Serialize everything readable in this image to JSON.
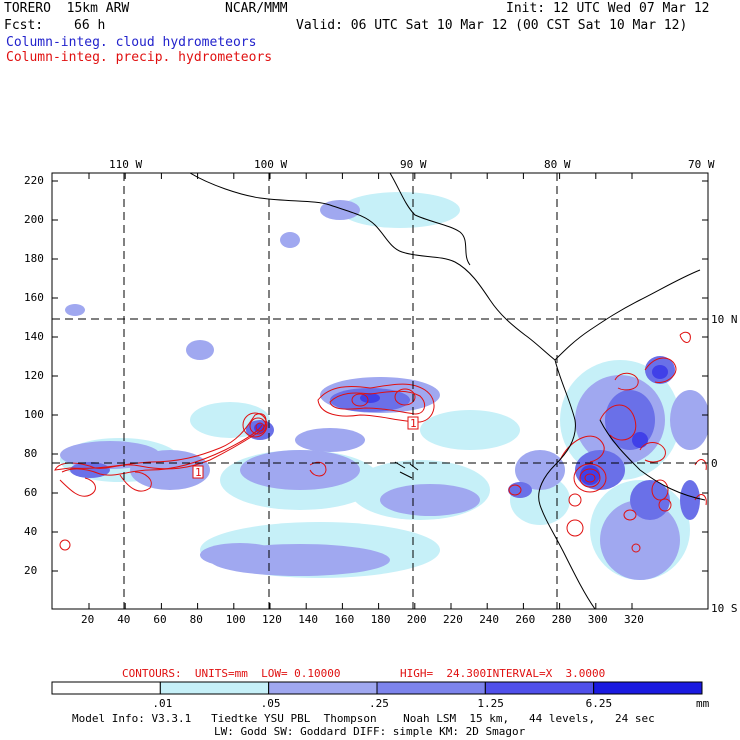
{
  "header": {
    "model": "TORERO  15km ARW",
    "org": "NCAR/MMM",
    "init": "Init: 12 UTC Wed 07 Mar 12",
    "fcst_label": "Fcst:",
    "fcst_value": "66 h",
    "valid": "Valid: 06 UTC Sat 10 Mar 12 (00 CST Sat 10 Mar 12)",
    "line_blue": "Column-integ. cloud hydrometeors",
    "line_red": "Column-integ. precip. hydrometeors"
  },
  "map": {
    "top_lon_labels": [
      "110 W",
      "100 W",
      "90 W",
      "80 W",
      "70 W"
    ],
    "right_lat_labels": [
      "10 N",
      "0",
      "10 S"
    ],
    "y_ticks": [
      "220",
      "200",
      "180",
      "160",
      "140",
      "120",
      "100",
      "80",
      "60",
      "40",
      "20"
    ],
    "x_ticks": [
      "20",
      "40",
      "60",
      "80",
      "100",
      "120",
      "140",
      "160",
      "180",
      "200",
      "220",
      "240",
      "260",
      "280",
      "300",
      "320"
    ],
    "contour_labels": [
      "1",
      "1"
    ],
    "colors": {
      "shade_light": "#c6f0f8",
      "shade_mid": "#a0a8f0",
      "shade_dark": "#6a70e8",
      "shade_darker": "#4040e8",
      "shade_darkest": "#1a1ae0",
      "contour": "#e01010",
      "coast": "#000000"
    }
  },
  "contour_info": {
    "contours": "CONTOURS:  UNITS=mm  LOW= 0.10000",
    "high": "HIGH=  24.300",
    "interval": "INTERVAL=X  3.0000"
  },
  "colorbar": {
    "labels": [
      ".01",
      ".05",
      ".25",
      "1.25",
      "6.25"
    ],
    "unit": "mm",
    "colors": [
      "#ffffff",
      "#c6f0f8",
      "#a0a8f0",
      "#7d84ec",
      "#5050ea",
      "#1a1ae0"
    ]
  },
  "footer": {
    "line1": "Model Info: V3.3.1   Tiedtke YSU PBL  Thompson    Noah LSM  15 km,   44 levels,   24 sec",
    "line2": "LW: Godd SW: Goddard DIFF: simple KM: 2D Smagor"
  }
}
